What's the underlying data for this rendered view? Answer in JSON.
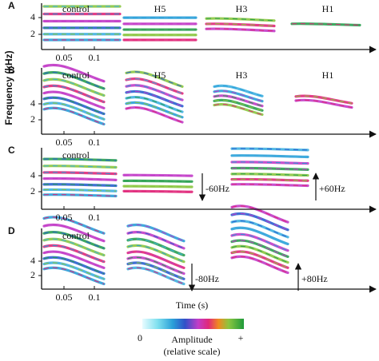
{
  "y_axis_label": "Frequency (kHz)",
  "x_axis_label": "Time (s)",
  "panels": [
    {
      "letter": "A",
      "yticks": [
        "4",
        "2"
      ],
      "xticks": [
        "0.05",
        "0.1"
      ],
      "labels": [
        "control",
        "H5",
        "H3",
        "H1"
      ]
    },
    {
      "letter": "B",
      "yticks": [
        "4",
        "2"
      ],
      "xticks": [
        "0.05",
        "0.1"
      ],
      "labels": [
        "control",
        "H5",
        "H3",
        "H1"
      ]
    },
    {
      "letter": "C",
      "yticks": [
        "4",
        "2"
      ],
      "xticks": [
        "0.05",
        "0.1"
      ],
      "labels": [
        "control"
      ],
      "annotations": [
        "-60Hz",
        "+60Hz"
      ]
    },
    {
      "letter": "D",
      "yticks": [
        "4",
        "2"
      ],
      "xticks": [
        "0.05",
        "0.1"
      ],
      "labels": [
        "control"
      ],
      "annotations": [
        "-80Hz",
        "+80Hz"
      ]
    }
  ],
  "colorbar": {
    "min": "0",
    "max": "+",
    "title": "Amplitude",
    "subtitle": "(relative scale)"
  }
}
